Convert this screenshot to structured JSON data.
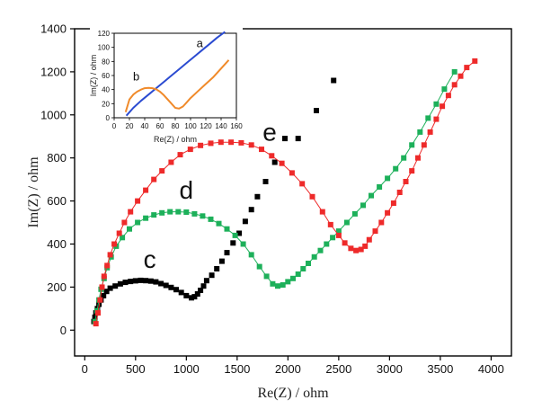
{
  "chart_data": [
    {
      "type": "scatter",
      "xlabel": "Re(Z) / ohm",
      "ylabel": "Im(Z) / ohm",
      "xlim": [
        -100,
        4200
      ],
      "ylim": [
        -120,
        1400
      ],
      "xticks": [
        0,
        500,
        1000,
        1500,
        2000,
        2500,
        3000,
        3500,
        4000
      ],
      "yticks": [
        0,
        200,
        400,
        600,
        800,
        1000,
        1200,
        1400
      ],
      "grid": false,
      "legend": "none",
      "series": [
        {
          "curve_label": "c",
          "color": "#000000",
          "connected": false,
          "points": [
            [
              90,
              40
            ],
            [
              100,
              60
            ],
            [
              110,
              80
            ],
            [
              125,
              100
            ],
            [
              140,
              120
            ],
            [
              160,
              140
            ],
            [
              185,
              160
            ],
            [
              215,
              180
            ],
            [
              250,
              195
            ],
            [
              300,
              205
            ],
            [
              350,
              215
            ],
            [
              400,
              222
            ],
            [
              450,
              226
            ],
            [
              500,
              229
            ],
            [
              550,
              231
            ],
            [
              600,
              230
            ],
            [
              650,
              228
            ],
            [
              700,
              224
            ],
            [
              750,
              216
            ],
            [
              800,
              208
            ],
            [
              850,
              198
            ],
            [
              900,
              188
            ],
            [
              950,
              175
            ],
            [
              1000,
              160
            ],
            [
              1050,
              150
            ],
            [
              1080,
              155
            ],
            [
              1110,
              168
            ],
            [
              1140,
              185
            ],
            [
              1170,
              205
            ],
            [
              1200,
              230
            ],
            [
              1250,
              255
            ],
            [
              1300,
              285
            ],
            [
              1350,
              320
            ],
            [
              1400,
              360
            ],
            [
              1460,
              405
            ],
            [
              1520,
              450
            ],
            [
              1580,
              505
            ],
            [
              1640,
              560
            ],
            [
              1700,
              620
            ],
            [
              1780,
              690
            ],
            [
              1870,
              780
            ],
            [
              1970,
              890
            ],
            [
              2100,
              890
            ],
            [
              2280,
              1020
            ],
            [
              2450,
              1160
            ]
          ]
        },
        {
          "curve_label": "d",
          "color": "#1db05a",
          "connected": true,
          "points": [
            [
              100,
              40
            ],
            [
              120,
              90
            ],
            [
              140,
              140
            ],
            [
              160,
              190
            ],
            [
              190,
              240
            ],
            [
              220,
              290
            ],
            [
              260,
              340
            ],
            [
              310,
              390
            ],
            [
              370,
              430
            ],
            [
              440,
              470
            ],
            [
              520,
              500
            ],
            [
              600,
              520
            ],
            [
              680,
              535
            ],
            [
              760,
              545
            ],
            [
              840,
              550
            ],
            [
              920,
              550
            ],
            [
              1000,
              548
            ],
            [
              1080,
              540
            ],
            [
              1160,
              530
            ],
            [
              1240,
              515
            ],
            [
              1320,
              495
            ],
            [
              1400,
              470
            ],
            [
              1480,
              440
            ],
            [
              1560,
              400
            ],
            [
              1640,
              350
            ],
            [
              1720,
              295
            ],
            [
              1790,
              250
            ],
            [
              1850,
              215
            ],
            [
              1900,
              205
            ],
            [
              1950,
              210
            ],
            [
              2000,
              225
            ],
            [
              2050,
              240
            ],
            [
              2100,
              260
            ],
            [
              2150,
              285
            ],
            [
              2200,
              310
            ],
            [
              2260,
              340
            ],
            [
              2320,
              370
            ],
            [
              2380,
              400
            ],
            [
              2440,
              430
            ],
            [
              2500,
              460
            ],
            [
              2580,
              500
            ],
            [
              2660,
              540
            ],
            [
              2740,
              580
            ],
            [
              2820,
              625
            ],
            [
              2900,
              665
            ],
            [
              2980,
              705
            ],
            [
              3060,
              750
            ],
            [
              3140,
              800
            ],
            [
              3220,
              860
            ],
            [
              3300,
              920
            ],
            [
              3380,
              985
            ],
            [
              3460,
              1050
            ],
            [
              3540,
              1120
            ],
            [
              3640,
              1200
            ]
          ]
        },
        {
          "curve_label": "e",
          "color": "#ee2a2a",
          "connected": true,
          "points": [
            [
              110,
              30
            ],
            [
              130,
              80
            ],
            [
              150,
              140
            ],
            [
              170,
              200
            ],
            [
              190,
              250
            ],
            [
              220,
              300
            ],
            [
              250,
              350
            ],
            [
              290,
              400
            ],
            [
              340,
              450
            ],
            [
              390,
              500
            ],
            [
              450,
              550
            ],
            [
              520,
              600
            ],
            [
              600,
              650
            ],
            [
              680,
              700
            ],
            [
              760,
              740
            ],
            [
              850,
              780
            ],
            [
              940,
              815
            ],
            [
              1040,
              840
            ],
            [
              1140,
              858
            ],
            [
              1240,
              868
            ],
            [
              1340,
              873
            ],
            [
              1440,
              873
            ],
            [
              1540,
              870
            ],
            [
              1640,
              860
            ],
            [
              1740,
              840
            ],
            [
              1840,
              810
            ],
            [
              1940,
              775
            ],
            [
              2040,
              730
            ],
            [
              2140,
              680
            ],
            [
              2240,
              620
            ],
            [
              2340,
              550
            ],
            [
              2420,
              490
            ],
            [
              2500,
              440
            ],
            [
              2560,
              405
            ],
            [
              2620,
              380
            ],
            [
              2670,
              370
            ],
            [
              2720,
              375
            ],
            [
              2760,
              390
            ],
            [
              2800,
              420
            ],
            [
              2860,
              460
            ],
            [
              2920,
              500
            ],
            [
              2980,
              545
            ],
            [
              3040,
              590
            ],
            [
              3100,
              640
            ],
            [
              3160,
              690
            ],
            [
              3220,
              740
            ],
            [
              3280,
              800
            ],
            [
              3340,
              860
            ],
            [
              3400,
              920
            ],
            [
              3460,
              980
            ],
            [
              3520,
              1040
            ],
            [
              3580,
              1090
            ],
            [
              3640,
              1140
            ],
            [
              3700,
              1180
            ],
            [
              3760,
              1220
            ],
            [
              3840,
              1250
            ]
          ]
        }
      ],
      "annotations": [
        {
          "text": "c",
          "x": 640,
          "y": 290
        },
        {
          "text": "d",
          "x": 1000,
          "y": 610
        },
        {
          "text": "e",
          "x": 1820,
          "y": 880
        }
      ]
    },
    {
      "type": "line",
      "inset": true,
      "xlabel": "Re(Z) / ohm",
      "ylabel": "Im(Z) / ohm",
      "xlim": [
        0,
        160
      ],
      "ylim": [
        0,
        120
      ],
      "xticks": [
        0,
        20,
        40,
        60,
        80,
        100,
        120,
        140,
        160
      ],
      "yticks": [
        0,
        20,
        40,
        60,
        80,
        100,
        120
      ],
      "grid": false,
      "legend": "none",
      "series": [
        {
          "curve_label": "a",
          "color": "#2b4bd1",
          "points": [
            [
              16,
              3
            ],
            [
              25,
              14
            ],
            [
              35,
              24
            ],
            [
              45,
              33
            ],
            [
              55,
              42
            ],
            [
              65,
              51
            ],
            [
              75,
              60
            ],
            [
              85,
              69
            ],
            [
              95,
              78
            ],
            [
              105,
              87
            ],
            [
              115,
              96
            ],
            [
              125,
              105
            ],
            [
              135,
              114
            ],
            [
              145,
              122
            ]
          ]
        },
        {
          "curve_label": "b",
          "color": "#f08a2a",
          "points": [
            [
              15,
              8
            ],
            [
              20,
              26
            ],
            [
              25,
              33
            ],
            [
              30,
              37
            ],
            [
              35,
              40
            ],
            [
              40,
              42
            ],
            [
              45,
              42.5
            ],
            [
              50,
              42
            ],
            [
              55,
              40.5
            ],
            [
              60,
              37
            ],
            [
              65,
              32
            ],
            [
              70,
              26
            ],
            [
              75,
              20
            ],
            [
              80,
              14
            ],
            [
              85,
              13
            ],
            [
              90,
              16
            ],
            [
              95,
              22
            ],
            [
              100,
              28
            ],
            [
              110,
              38
            ],
            [
              120,
              48
            ],
            [
              130,
              58
            ],
            [
              140,
              70
            ],
            [
              150,
              82
            ]
          ]
        }
      ],
      "annotations": [
        {
          "text": "a",
          "x": 112,
          "y": 100
        },
        {
          "text": "b",
          "x": 29,
          "y": 53
        }
      ]
    }
  ]
}
